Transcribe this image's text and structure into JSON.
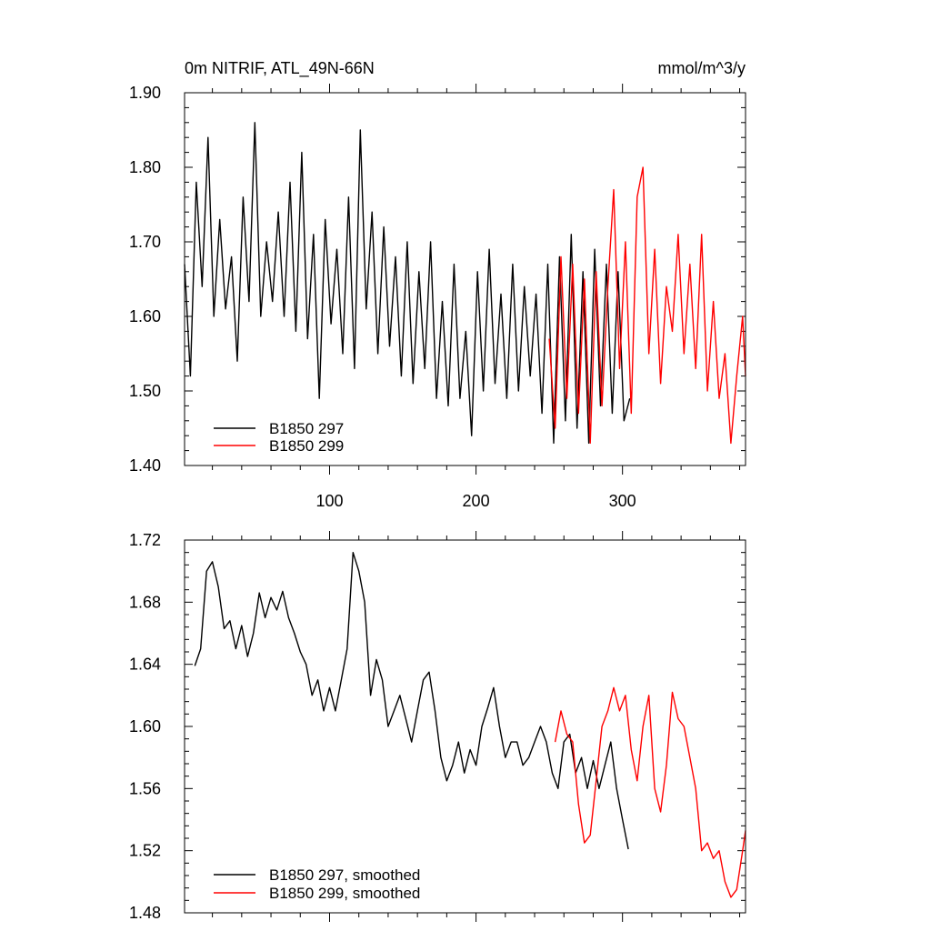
{
  "chart_data": [
    {
      "type": "line",
      "title": "0m NITRIF, ATL_49N-66N",
      "units": "mmol/m^3/y",
      "xlim": [
        1,
        384
      ],
      "ylim": [
        1.4,
        1.9
      ],
      "xticks": [
        100,
        200,
        300
      ],
      "xtick_labels": [
        "100",
        "200",
        "300"
      ],
      "yticks": [
        1.4,
        1.5,
        1.6,
        1.7,
        1.8,
        1.9
      ],
      "ytick_labels": [
        "1.40",
        "1.50",
        "1.60",
        "1.70",
        "1.80",
        "1.90"
      ],
      "grid": false,
      "legend_position": "bottom-left",
      "series": [
        {
          "name": "B1850 297",
          "color": "#000000",
          "x": [
            1,
            5,
            9,
            13,
            17,
            21,
            25,
            29,
            33,
            37,
            41,
            45,
            49,
            53,
            57,
            61,
            65,
            69,
            73,
            77,
            81,
            85,
            89,
            93,
            97,
            101,
            105,
            109,
            113,
            117,
            121,
            125,
            129,
            133,
            137,
            141,
            145,
            149,
            153,
            157,
            161,
            165,
            169,
            173,
            177,
            181,
            185,
            189,
            193,
            197,
            201,
            205,
            209,
            213,
            217,
            221,
            225,
            229,
            233,
            237,
            241,
            245,
            249,
            253,
            257,
            261,
            265,
            269,
            273,
            277,
            281,
            285,
            289,
            293,
            297,
            301,
            305
          ],
          "values": [
            1.67,
            1.52,
            1.78,
            1.64,
            1.84,
            1.6,
            1.73,
            1.61,
            1.68,
            1.54,
            1.76,
            1.62,
            1.86,
            1.6,
            1.7,
            1.62,
            1.74,
            1.6,
            1.78,
            1.58,
            1.82,
            1.57,
            1.71,
            1.49,
            1.73,
            1.59,
            1.69,
            1.55,
            1.76,
            1.53,
            1.85,
            1.61,
            1.74,
            1.55,
            1.72,
            1.56,
            1.68,
            1.52,
            1.7,
            1.51,
            1.66,
            1.53,
            1.7,
            1.49,
            1.62,
            1.48,
            1.67,
            1.49,
            1.58,
            1.44,
            1.66,
            1.5,
            1.69,
            1.51,
            1.63,
            1.49,
            1.67,
            1.5,
            1.64,
            1.52,
            1.63,
            1.47,
            1.67,
            1.43,
            1.68,
            1.46,
            1.71,
            1.45,
            1.66,
            1.43,
            1.69,
            1.48,
            1.67,
            1.47,
            1.66,
            1.46,
            1.49
          ]
        },
        {
          "name": "B1850 299",
          "color": "#ff0000",
          "x": [
            250,
            254,
            258,
            262,
            266,
            270,
            274,
            278,
            282,
            286,
            290,
            294,
            298,
            302,
            306,
            310,
            314,
            318,
            322,
            326,
            330,
            334,
            338,
            342,
            346,
            350,
            354,
            358,
            362,
            366,
            370,
            374,
            378,
            382,
            384
          ],
          "values": [
            1.57,
            1.45,
            1.68,
            1.49,
            1.67,
            1.47,
            1.65,
            1.43,
            1.66,
            1.48,
            1.64,
            1.77,
            1.53,
            1.7,
            1.47,
            1.76,
            1.8,
            1.55,
            1.69,
            1.51,
            1.64,
            1.58,
            1.71,
            1.55,
            1.67,
            1.53,
            1.71,
            1.5,
            1.62,
            1.49,
            1.55,
            1.43,
            1.52,
            1.6,
            1.52
          ]
        }
      ]
    },
    {
      "type": "line",
      "xlim": [
        1,
        384
      ],
      "ylim": [
        1.48,
        1.72
      ],
      "xticks": [
        100,
        200,
        300
      ],
      "xtick_labels": [],
      "yticks": [
        1.48,
        1.52,
        1.56,
        1.6,
        1.64,
        1.68,
        1.72
      ],
      "ytick_labels": [
        "1.48",
        "1.52",
        "1.56",
        "1.60",
        "1.64",
        "1.68",
        "1.72"
      ],
      "grid": false,
      "legend_position": "bottom-left",
      "series": [
        {
          "name": "B1850 297, smoothed",
          "color": "#000000",
          "x": [
            8,
            12,
            16,
            20,
            24,
            28,
            32,
            36,
            40,
            44,
            48,
            52,
            56,
            60,
            64,
            68,
            72,
            76,
            80,
            84,
            88,
            92,
            96,
            100,
            104,
            108,
            112,
            116,
            120,
            124,
            128,
            132,
            136,
            140,
            144,
            148,
            152,
            156,
            160,
            164,
            168,
            172,
            176,
            180,
            184,
            188,
            192,
            196,
            200,
            204,
            208,
            212,
            216,
            220,
            224,
            228,
            232,
            236,
            240,
            244,
            248,
            252,
            256,
            260,
            264,
            268,
            272,
            276,
            280,
            284,
            288,
            292,
            296,
            300,
            304
          ],
          "values": [
            1.639,
            1.65,
            1.7,
            1.706,
            1.69,
            1.663,
            1.668,
            1.65,
            1.665,
            1.645,
            1.66,
            1.686,
            1.67,
            1.683,
            1.675,
            1.687,
            1.67,
            1.66,
            1.648,
            1.64,
            1.62,
            1.63,
            1.61,
            1.625,
            1.61,
            1.63,
            1.65,
            1.712,
            1.7,
            1.68,
            1.62,
            1.643,
            1.63,
            1.6,
            1.61,
            1.62,
            1.605,
            1.59,
            1.61,
            1.63,
            1.635,
            1.61,
            1.58,
            1.565,
            1.575,
            1.59,
            1.57,
            1.585,
            1.575,
            1.6,
            1.612,
            1.625,
            1.6,
            1.58,
            1.59,
            1.59,
            1.575,
            1.58,
            1.59,
            1.6,
            1.59,
            1.57,
            1.56,
            1.59,
            1.595,
            1.57,
            1.58,
            1.56,
            1.578,
            1.56,
            1.575,
            1.59,
            1.56,
            1.54,
            1.521
          ]
        },
        {
          "name": "B1850 299, smoothed",
          "color": "#ff0000",
          "x": [
            254,
            258,
            262,
            266,
            270,
            274,
            278,
            282,
            286,
            290,
            294,
            298,
            302,
            306,
            310,
            314,
            318,
            322,
            326,
            330,
            334,
            338,
            342,
            346,
            350,
            354,
            358,
            362,
            366,
            370,
            374,
            378,
            382,
            384
          ],
          "values": [
            1.59,
            1.61,
            1.595,
            1.59,
            1.55,
            1.525,
            1.53,
            1.565,
            1.6,
            1.61,
            1.625,
            1.61,
            1.62,
            1.585,
            1.565,
            1.6,
            1.62,
            1.56,
            1.545,
            1.575,
            1.622,
            1.605,
            1.6,
            1.58,
            1.56,
            1.52,
            1.525,
            1.515,
            1.52,
            1.5,
            1.49,
            1.495,
            1.52,
            1.533
          ]
        }
      ]
    }
  ]
}
